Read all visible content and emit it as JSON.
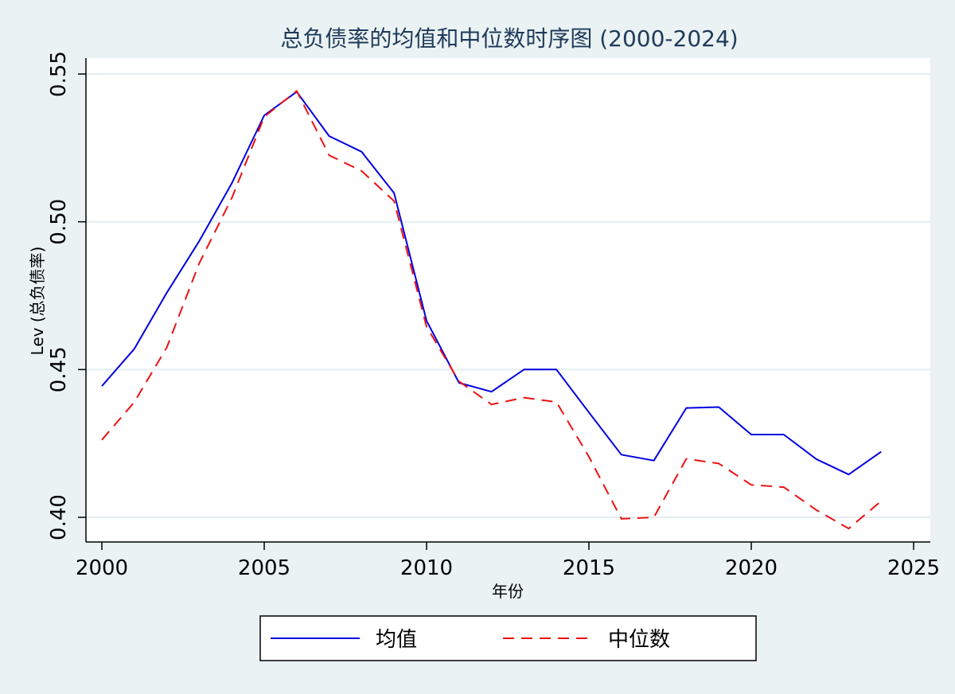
{
  "chart_data": {
    "type": "line",
    "title": "总负债率的均值和中位数时序图 (2000-2024)",
    "xlabel": "年份",
    "ylabel": "Lev (总负债率)",
    "xlim": [
      2000,
      2025
    ],
    "ylim": [
      0.4,
      0.55
    ],
    "x_ticks": [
      2000,
      2005,
      2010,
      2015,
      2020,
      2025
    ],
    "y_ticks": [
      0.4,
      0.45,
      0.5,
      0.55
    ],
    "y_tick_labels": [
      "0.40",
      "0.45",
      "0.50",
      "0.55"
    ],
    "grid": true,
    "legend_position": "bottom",
    "x": [
      2000,
      2001,
      2002,
      2003,
      2004,
      2005,
      2006,
      2007,
      2008,
      2009,
      2010,
      2011,
      2012,
      2013,
      2014,
      2015,
      2016,
      2017,
      2018,
      2019,
      2020,
      2021,
      2022,
      2023,
      2024
    ],
    "series": [
      {
        "name": "均值",
        "color": "#0000e0",
        "style": "solid",
        "values": [
          0.4444,
          0.457,
          0.476,
          0.4935,
          0.513,
          0.536,
          0.544,
          0.529,
          0.5237,
          0.5097,
          0.4665,
          0.4455,
          0.4425,
          0.45,
          0.45,
          0.4355,
          0.4212,
          0.4192,
          0.437,
          0.4373,
          0.428,
          0.428,
          0.4197,
          0.4145,
          0.4222
        ]
      },
      {
        "name": "中位数",
        "color": "#ee1111",
        "style": "dashed",
        "values": [
          0.4262,
          0.439,
          0.4575,
          0.486,
          0.508,
          0.5355,
          0.5443,
          0.5225,
          0.5172,
          0.507,
          0.4645,
          0.446,
          0.4382,
          0.4405,
          0.439,
          0.4205,
          0.3995,
          0.4,
          0.4198,
          0.4182,
          0.411,
          0.4102,
          0.4025,
          0.3962,
          0.4055
        ]
      }
    ]
  }
}
